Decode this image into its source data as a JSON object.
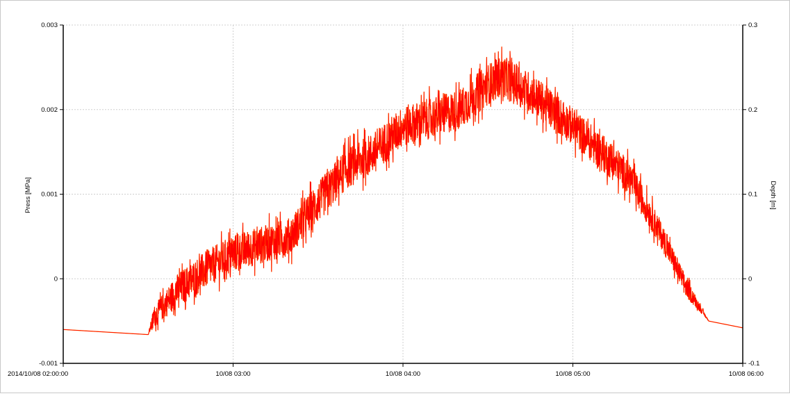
{
  "chart_data": {
    "type": "line",
    "title": "",
    "xlabel": "",
    "ylabel": "Press [MPa]",
    "y2label": "Depth [m]",
    "xlim": [
      "2014-10-08 02:00:00",
      "2014-10-08 06:00:00"
    ],
    "ylim": [
      -0.001,
      0.003
    ],
    "y2lim": [
      -0.1,
      0.3
    ],
    "grid": true,
    "legend": "none",
    "x_tick_labels": [
      "2014/10/08 02:00:00",
      "10/08 03:00",
      "10/08 04:00",
      "10/08 05:00",
      "10/08 06:00"
    ],
    "y_tick_labels": [
      "0.003",
      "0.002",
      "0.001",
      "0",
      "-0.001"
    ],
    "y2_tick_labels": [
      "0.3",
      "0.2",
      "0.1",
      "0",
      "-0.1"
    ],
    "series": [
      {
        "color": "#ff0000",
        "x": [
          "2014-10-08 02:00",
          "2014-10-08 02:30",
          "2014-10-08 02:32",
          "2014-10-08 02:40",
          "2014-10-08 02:50",
          "2014-10-08 03:00",
          "2014-10-08 03:10",
          "2014-10-08 03:20",
          "2014-10-08 03:30",
          "2014-10-08 03:40",
          "2014-10-08 03:50",
          "2014-10-08 04:00",
          "2014-10-08 04:10",
          "2014-10-08 04:20",
          "2014-10-08 04:30",
          "2014-10-08 04:35",
          "2014-10-08 04:45",
          "2014-10-08 05:00",
          "2014-10-08 05:10",
          "2014-10-08 05:20",
          "2014-10-08 05:30",
          "2014-10-08 05:40",
          "2014-10-08 05:48",
          "2014-10-08 06:00"
        ],
        "y": [
          -0.0006,
          -0.00066,
          -0.00045,
          -0.00015,
          0.0001,
          0.0003,
          0.0004,
          0.0005,
          0.0009,
          0.0013,
          0.0015,
          0.0018,
          0.0019,
          0.002,
          0.0023,
          0.0024,
          0.0022,
          0.0018,
          0.0015,
          0.0012,
          0.0006,
          -0.0001,
          -0.0005,
          -0.00058
        ],
        "noise_amplitude": [
          0,
          0,
          0.00012,
          0.0002,
          0.00022,
          0.00022,
          0.00022,
          0.00022,
          0.00024,
          0.00024,
          0.00024,
          0.00024,
          0.00024,
          0.00024,
          0.00024,
          0.00024,
          0.00024,
          0.00022,
          0.00022,
          0.0002,
          0.00016,
          0.00012,
          0,
          0
        ]
      }
    ]
  }
}
